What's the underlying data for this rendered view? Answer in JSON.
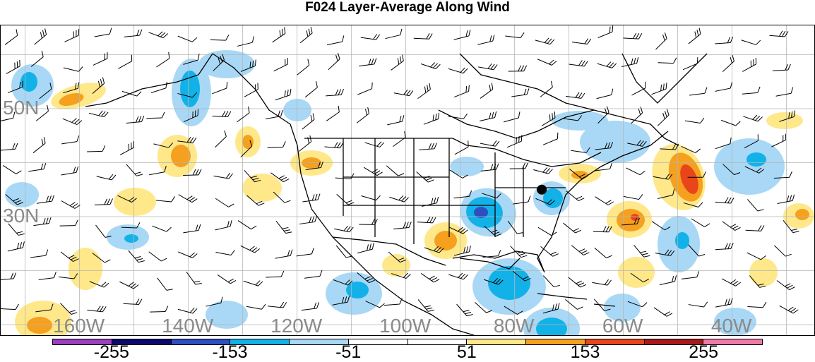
{
  "title": "F024 Layer-Average Along Wind",
  "lat_labels": [
    {
      "text": "50N",
      "lat": 50
    },
    {
      "text": "30N",
      "lat": 30
    }
  ],
  "lon_labels": [
    {
      "text": "160W",
      "lon": -160
    },
    {
      "text": "140W",
      "lon": -140
    },
    {
      "text": "120W",
      "lon": -120
    },
    {
      "text": "100W",
      "lon": -100
    },
    {
      "text": "80W",
      "lon": -80
    },
    {
      "text": "60W",
      "lon": -60
    },
    {
      "text": "40W",
      "lon": -40
    }
  ],
  "colorbar": {
    "colors": [
      "#9b3fc0",
      "#0a0a6e",
      "#2e4fc0",
      "#12b2e8",
      "#a8d8f5",
      "#ffffff",
      "#ffffff",
      "#ffe88a",
      "#f5a01f",
      "#e8461a",
      "#a81a1a",
      "#f07aa8"
    ],
    "ticks": [
      {
        "text": "-255",
        "index": 1
      },
      {
        "text": "-153",
        "index": 3
      },
      {
        "text": "-51",
        "index": 5
      },
      {
        "text": "51",
        "index": 7
      },
      {
        "text": "153",
        "index": 9
      },
      {
        "text": "255",
        "index": 11
      }
    ]
  },
  "marker": {
    "name": "black-dot",
    "lat": 35,
    "lon": -75
  }
}
